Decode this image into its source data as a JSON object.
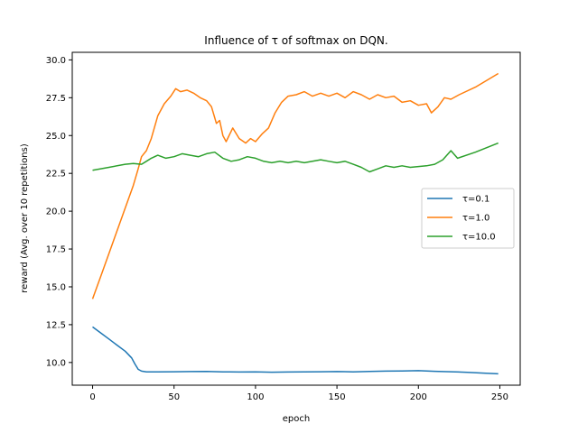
{
  "chart_data": {
    "type": "line",
    "title": "Influence of τ of softmax on DQN.",
    "xlabel": "epoch",
    "ylabel": "reward (Avg. over 10 repetitions)",
    "xlim": [
      -12.5,
      262.5
    ],
    "ylim": [
      8.5,
      30.5
    ],
    "xticks": [
      0,
      50,
      100,
      150,
      200,
      250
    ],
    "yticks": [
      10.0,
      12.5,
      15.0,
      17.5,
      20.0,
      22.5,
      25.0,
      27.5,
      30.0
    ],
    "ytick_labels": [
      "10.0",
      "12.5",
      "15.0",
      "17.5",
      "20.0",
      "22.5",
      "25.0",
      "27.5",
      "30.0"
    ],
    "grid": false,
    "legend_position": "center-right",
    "series": [
      {
        "name": "τ=0.1",
        "color": "#1f77b4",
        "points": [
          [
            0,
            12.35
          ],
          [
            5,
            11.95
          ],
          [
            10,
            11.55
          ],
          [
            15,
            11.15
          ],
          [
            20,
            10.75
          ],
          [
            24,
            10.3
          ],
          [
            26,
            9.9
          ],
          [
            28,
            9.55
          ],
          [
            30,
            9.43
          ],
          [
            33,
            9.38
          ],
          [
            40,
            9.38
          ],
          [
            50,
            9.39
          ],
          [
            60,
            9.4
          ],
          [
            70,
            9.41
          ],
          [
            80,
            9.38
          ],
          [
            90,
            9.37
          ],
          [
            100,
            9.38
          ],
          [
            110,
            9.36
          ],
          [
            120,
            9.37
          ],
          [
            130,
            9.38
          ],
          [
            140,
            9.39
          ],
          [
            150,
            9.4
          ],
          [
            160,
            9.38
          ],
          [
            170,
            9.41
          ],
          [
            180,
            9.43
          ],
          [
            190,
            9.44
          ],
          [
            200,
            9.46
          ],
          [
            210,
            9.42
          ],
          [
            220,
            9.39
          ],
          [
            230,
            9.35
          ],
          [
            240,
            9.3
          ],
          [
            249,
            9.25
          ]
        ]
      },
      {
        "name": "τ=1.0",
        "color": "#ff7f0e",
        "points": [
          [
            0,
            14.2
          ],
          [
            5,
            15.7
          ],
          [
            10,
            17.2
          ],
          [
            15,
            18.7
          ],
          [
            20,
            20.2
          ],
          [
            25,
            21.7
          ],
          [
            28,
            22.8
          ],
          [
            30,
            23.6
          ],
          [
            33,
            24.0
          ],
          [
            36,
            24.8
          ],
          [
            40,
            26.3
          ],
          [
            44,
            27.1
          ],
          [
            48,
            27.6
          ],
          [
            51,
            28.1
          ],
          [
            54,
            27.9
          ],
          [
            58,
            28.0
          ],
          [
            62,
            27.8
          ],
          [
            66,
            27.5
          ],
          [
            70,
            27.3
          ],
          [
            73,
            26.9
          ],
          [
            76,
            25.8
          ],
          [
            78,
            26.0
          ],
          [
            80,
            25.0
          ],
          [
            82,
            24.6
          ],
          [
            86,
            25.5
          ],
          [
            90,
            24.8
          ],
          [
            94,
            24.5
          ],
          [
            97,
            24.8
          ],
          [
            100,
            24.6
          ],
          [
            104,
            25.1
          ],
          [
            108,
            25.5
          ],
          [
            112,
            26.5
          ],
          [
            116,
            27.2
          ],
          [
            120,
            27.6
          ],
          [
            125,
            27.7
          ],
          [
            130,
            27.9
          ],
          [
            135,
            27.6
          ],
          [
            140,
            27.8
          ],
          [
            145,
            27.6
          ],
          [
            150,
            27.8
          ],
          [
            155,
            27.5
          ],
          [
            160,
            27.9
          ],
          [
            165,
            27.7
          ],
          [
            170,
            27.4
          ],
          [
            175,
            27.7
          ],
          [
            180,
            27.5
          ],
          [
            185,
            27.6
          ],
          [
            190,
            27.2
          ],
          [
            195,
            27.3
          ],
          [
            200,
            27.0
          ],
          [
            205,
            27.1
          ],
          [
            208,
            26.5
          ],
          [
            212,
            26.9
          ],
          [
            216,
            27.5
          ],
          [
            220,
            27.4
          ],
          [
            225,
            27.7
          ],
          [
            235,
            28.2
          ],
          [
            249,
            29.1
          ]
        ]
      },
      {
        "name": "τ=10.0",
        "color": "#2ca02c",
        "points": [
          [
            0,
            22.7
          ],
          [
            10,
            22.9
          ],
          [
            20,
            23.1
          ],
          [
            25,
            23.15
          ],
          [
            30,
            23.1
          ],
          [
            33,
            23.3
          ],
          [
            36,
            23.5
          ],
          [
            40,
            23.7
          ],
          [
            45,
            23.5
          ],
          [
            50,
            23.6
          ],
          [
            55,
            23.8
          ],
          [
            60,
            23.7
          ],
          [
            65,
            23.6
          ],
          [
            70,
            23.8
          ],
          [
            75,
            23.9
          ],
          [
            80,
            23.5
          ],
          [
            85,
            23.3
          ],
          [
            90,
            23.4
          ],
          [
            95,
            23.6
          ],
          [
            100,
            23.5
          ],
          [
            105,
            23.3
          ],
          [
            110,
            23.2
          ],
          [
            115,
            23.3
          ],
          [
            120,
            23.2
          ],
          [
            125,
            23.3
          ],
          [
            130,
            23.2
          ],
          [
            135,
            23.3
          ],
          [
            140,
            23.4
          ],
          [
            145,
            23.3
          ],
          [
            150,
            23.2
          ],
          [
            155,
            23.3
          ],
          [
            160,
            23.1
          ],
          [
            165,
            22.9
          ],
          [
            170,
            22.6
          ],
          [
            175,
            22.8
          ],
          [
            180,
            23.0
          ],
          [
            185,
            22.9
          ],
          [
            190,
            23.0
          ],
          [
            195,
            22.9
          ],
          [
            200,
            22.95
          ],
          [
            205,
            23.0
          ],
          [
            210,
            23.1
          ],
          [
            215,
            23.4
          ],
          [
            220,
            24.0
          ],
          [
            224,
            23.5
          ],
          [
            235,
            23.9
          ],
          [
            249,
            24.5
          ]
        ]
      }
    ]
  }
}
